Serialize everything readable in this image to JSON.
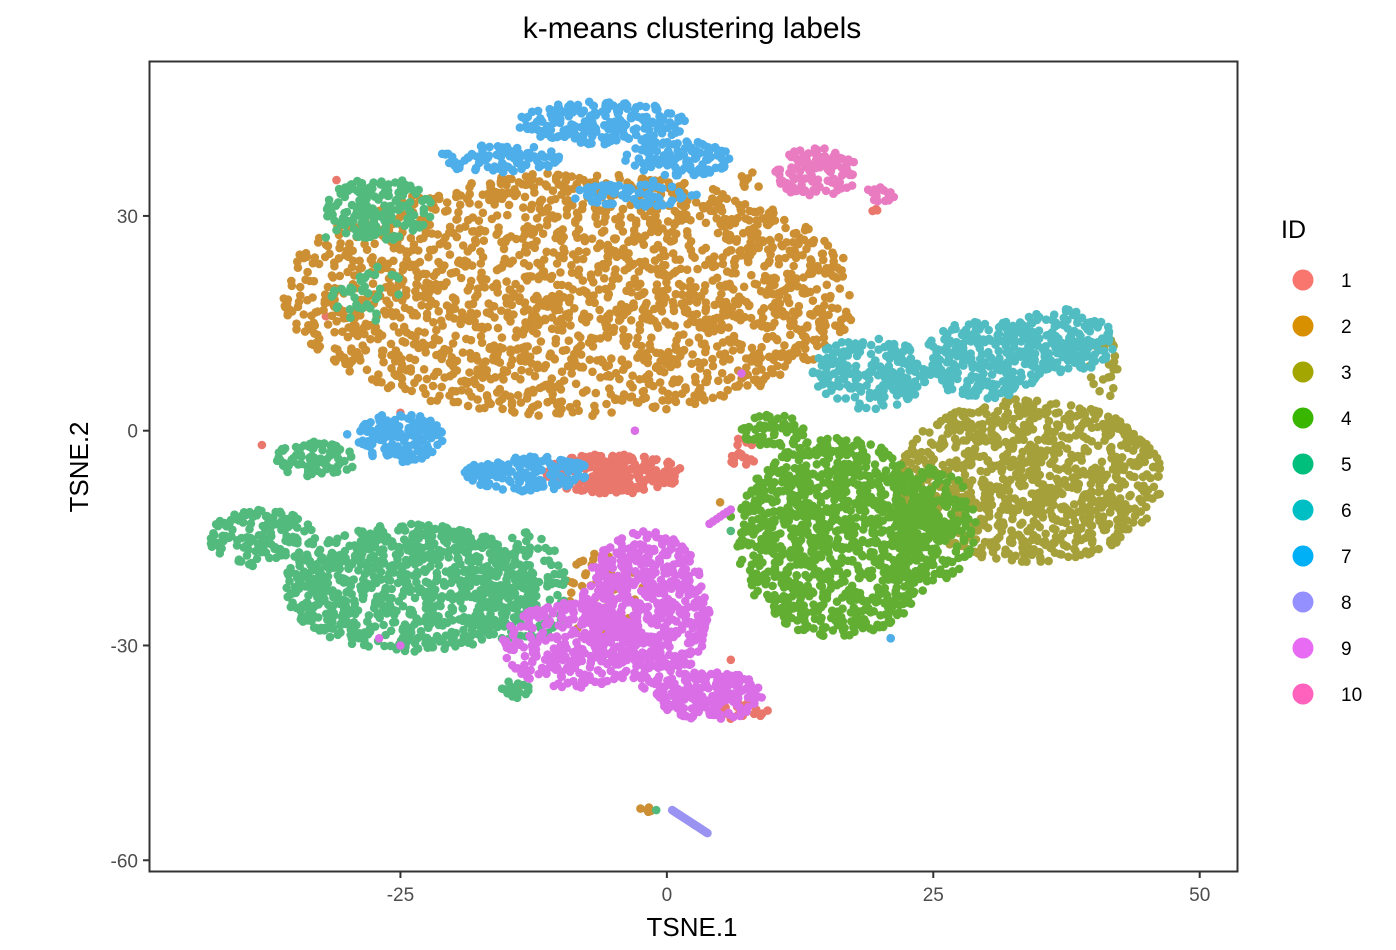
{
  "chart_data": {
    "type": "scatter",
    "title": "k-means clustering labels",
    "xlabel": "TSNE.1",
    "ylabel": "TSNE.2",
    "xlim": [
      -48.5,
      53.5
    ],
    "ylim": [
      -61.5,
      51.5
    ],
    "x_ticks": [
      -25,
      0,
      25,
      50
    ],
    "x_tick_labels": [
      "-25",
      "0",
      "25",
      "50"
    ],
    "y_ticks": [
      -60,
      -30,
      0,
      30
    ],
    "y_tick_labels": [
      "-60",
      "-30",
      "0",
      "30"
    ],
    "grid": false,
    "legend": {
      "title": "ID",
      "position": "right",
      "entries": [
        {
          "label": "1",
          "color": "#F8766D"
        },
        {
          "label": "2",
          "color": "#D89000"
        },
        {
          "label": "3",
          "color": "#A3A500"
        },
        {
          "label": "4",
          "color": "#39B600"
        },
        {
          "label": "5",
          "color": "#00BF7D"
        },
        {
          "label": "6",
          "color": "#00BFC4"
        },
        {
          "label": "7",
          "color": "#00B0F6"
        },
        {
          "label": "8",
          "color": "#9590FF"
        },
        {
          "label": "9",
          "color": "#E76BF3"
        },
        {
          "label": "10",
          "color": "#FF62BC"
        }
      ]
    },
    "series": [
      {
        "name": "1",
        "color": "#E9776C",
        "regions": [
          {
            "x": -5,
            "y": -6,
            "rx": 6.5,
            "ry": 2.8,
            "n": 260
          },
          {
            "x": 7,
            "y": -3,
            "rx": 1.5,
            "ry": 2,
            "n": 18
          },
          {
            "x": 7,
            "y": -39,
            "rx": 2.5,
            "ry": 1.5,
            "n": 20
          },
          {
            "x": 19.5,
            "y": 31,
            "rx": 0.4,
            "ry": 0.4,
            "n": 3
          }
        ],
        "points": [
          [
            -31,
            35
          ],
          [
            -25,
            2.5
          ],
          [
            -38,
            -2
          ],
          [
            6,
            -32
          ],
          [
            -32,
            16
          ]
        ]
      },
      {
        "name": "2",
        "color": "#CC8F33",
        "regions": [
          {
            "x": -9,
            "y": 19,
            "rx": 27,
            "ry": 17,
            "n": 1900
          },
          {
            "x": -6,
            "y": -23,
            "rx": 4,
            "ry": 6,
            "n": 55
          },
          {
            "x": -2,
            "y": -53,
            "rx": 0.6,
            "ry": 0.6,
            "n": 6
          },
          {
            "x": 8,
            "y": 35,
            "rx": 1.2,
            "ry": 1.2,
            "n": 8
          }
        ],
        "points": [
          [
            -14,
            -36
          ],
          [
            -20,
            4
          ],
          [
            5,
            -10
          ]
        ]
      },
      {
        "name": "3",
        "color": "#A6A03B",
        "regions": [
          {
            "x": 34,
            "y": -7,
            "rx": 12.5,
            "ry": 11.5,
            "n": 950
          },
          {
            "x": 41,
            "y": 9,
            "rx": 1.5,
            "ry": 5,
            "n": 20
          }
        ],
        "points": []
      },
      {
        "name": "4",
        "color": "#62AE33",
        "regions": [
          {
            "x": 16,
            "y": -15,
            "rx": 9.5,
            "ry": 14,
            "n": 1050
          },
          {
            "x": 25,
            "y": -13,
            "rx": 4,
            "ry": 8,
            "n": 200
          },
          {
            "x": 10,
            "y": 0,
            "rx": 3,
            "ry": 2.5,
            "n": 60
          }
        ],
        "points": [
          [
            6,
            -12
          ],
          [
            7,
            -16
          ]
        ]
      },
      {
        "name": "5",
        "color": "#52BA7D",
        "regions": [
          {
            "x": -24,
            "y": -22,
            "rx": 12,
            "ry": 9,
            "n": 820
          },
          {
            "x": -38,
            "y": -15,
            "rx": 5,
            "ry": 4,
            "n": 140
          },
          {
            "x": -14,
            "y": -22,
            "rx": 5,
            "ry": 8,
            "n": 150
          },
          {
            "x": -33,
            "y": -4,
            "rx": 4,
            "ry": 2.5,
            "n": 80
          },
          {
            "x": -27,
            "y": 31,
            "rx": 5,
            "ry": 4.5,
            "n": 170
          },
          {
            "x": -28,
            "y": 19,
            "rx": 3.5,
            "ry": 4,
            "n": 40
          },
          {
            "x": -14,
            "y": -36,
            "rx": 1.5,
            "ry": 1.5,
            "n": 14
          }
        ],
        "points": [
          [
            -32,
            27
          ],
          [
            -31,
            28
          ],
          [
            -1,
            -53
          ],
          [
            6,
            -14
          ]
        ]
      },
      {
        "name": "6",
        "color": "#51BDC2",
        "regions": [
          {
            "x": 19,
            "y": 8,
            "rx": 5.5,
            "ry": 5,
            "n": 200
          },
          {
            "x": 30,
            "y": 10,
            "rx": 6,
            "ry": 5.5,
            "n": 260
          },
          {
            "x": 37,
            "y": 12.5,
            "rx": 5,
            "ry": 4.5,
            "n": 170
          }
        ],
        "points": [
          [
            21,
            -29
          ]
        ]
      },
      {
        "name": "7",
        "color": "#4EAEEA",
        "regions": [
          {
            "x": -6,
            "y": 43,
            "rx": 8,
            "ry": 3,
            "n": 200
          },
          {
            "x": -16,
            "y": 38,
            "rx": 6,
            "ry": 2,
            "n": 90
          },
          {
            "x": 1,
            "y": 38,
            "rx": 5,
            "ry": 2.5,
            "n": 120
          },
          {
            "x": -25,
            "y": -1,
            "rx": 4,
            "ry": 3.5,
            "n": 150
          },
          {
            "x": -13,
            "y": -6,
            "rx": 6,
            "ry": 2.5,
            "n": 150
          },
          {
            "x": -3,
            "y": 33,
            "rx": 6,
            "ry": 2,
            "n": 70
          }
        ],
        "points": [
          [
            -30,
            -0.5
          ],
          [
            21,
            -29
          ]
        ]
      },
      {
        "name": "8",
        "color": "#9A93F2",
        "regions": [],
        "line": {
          "from": [
            0.5,
            -53
          ],
          "to": [
            3.8,
            -56.2
          ],
          "n": 30
        },
        "points": []
      },
      {
        "name": "9",
        "color": "#D96EE6",
        "regions": [
          {
            "x": -2,
            "y": -25,
            "rx": 6,
            "ry": 11,
            "n": 560
          },
          {
            "x": 4,
            "y": -37,
            "rx": 5,
            "ry": 3.5,
            "n": 220
          },
          {
            "x": -9,
            "y": -30,
            "rx": 6.5,
            "ry": 6,
            "n": 260
          }
        ],
        "line": {
          "from": [
            4,
            -13
          ],
          "to": [
            6,
            -11
          ],
          "n": 7
        },
        "points": [
          [
            7,
            8
          ],
          [
            -3,
            0
          ],
          [
            -25,
            -30
          ],
          [
            -27,
            -29
          ]
        ]
      },
      {
        "name": "10",
        "color": "#E97BC1",
        "regions": [
          {
            "x": 14,
            "y": 36,
            "rx": 4,
            "ry": 3.5,
            "n": 120
          },
          {
            "x": 20,
            "y": 33,
            "rx": 1.5,
            "ry": 1.2,
            "n": 20
          }
        ],
        "points": []
      }
    ]
  }
}
